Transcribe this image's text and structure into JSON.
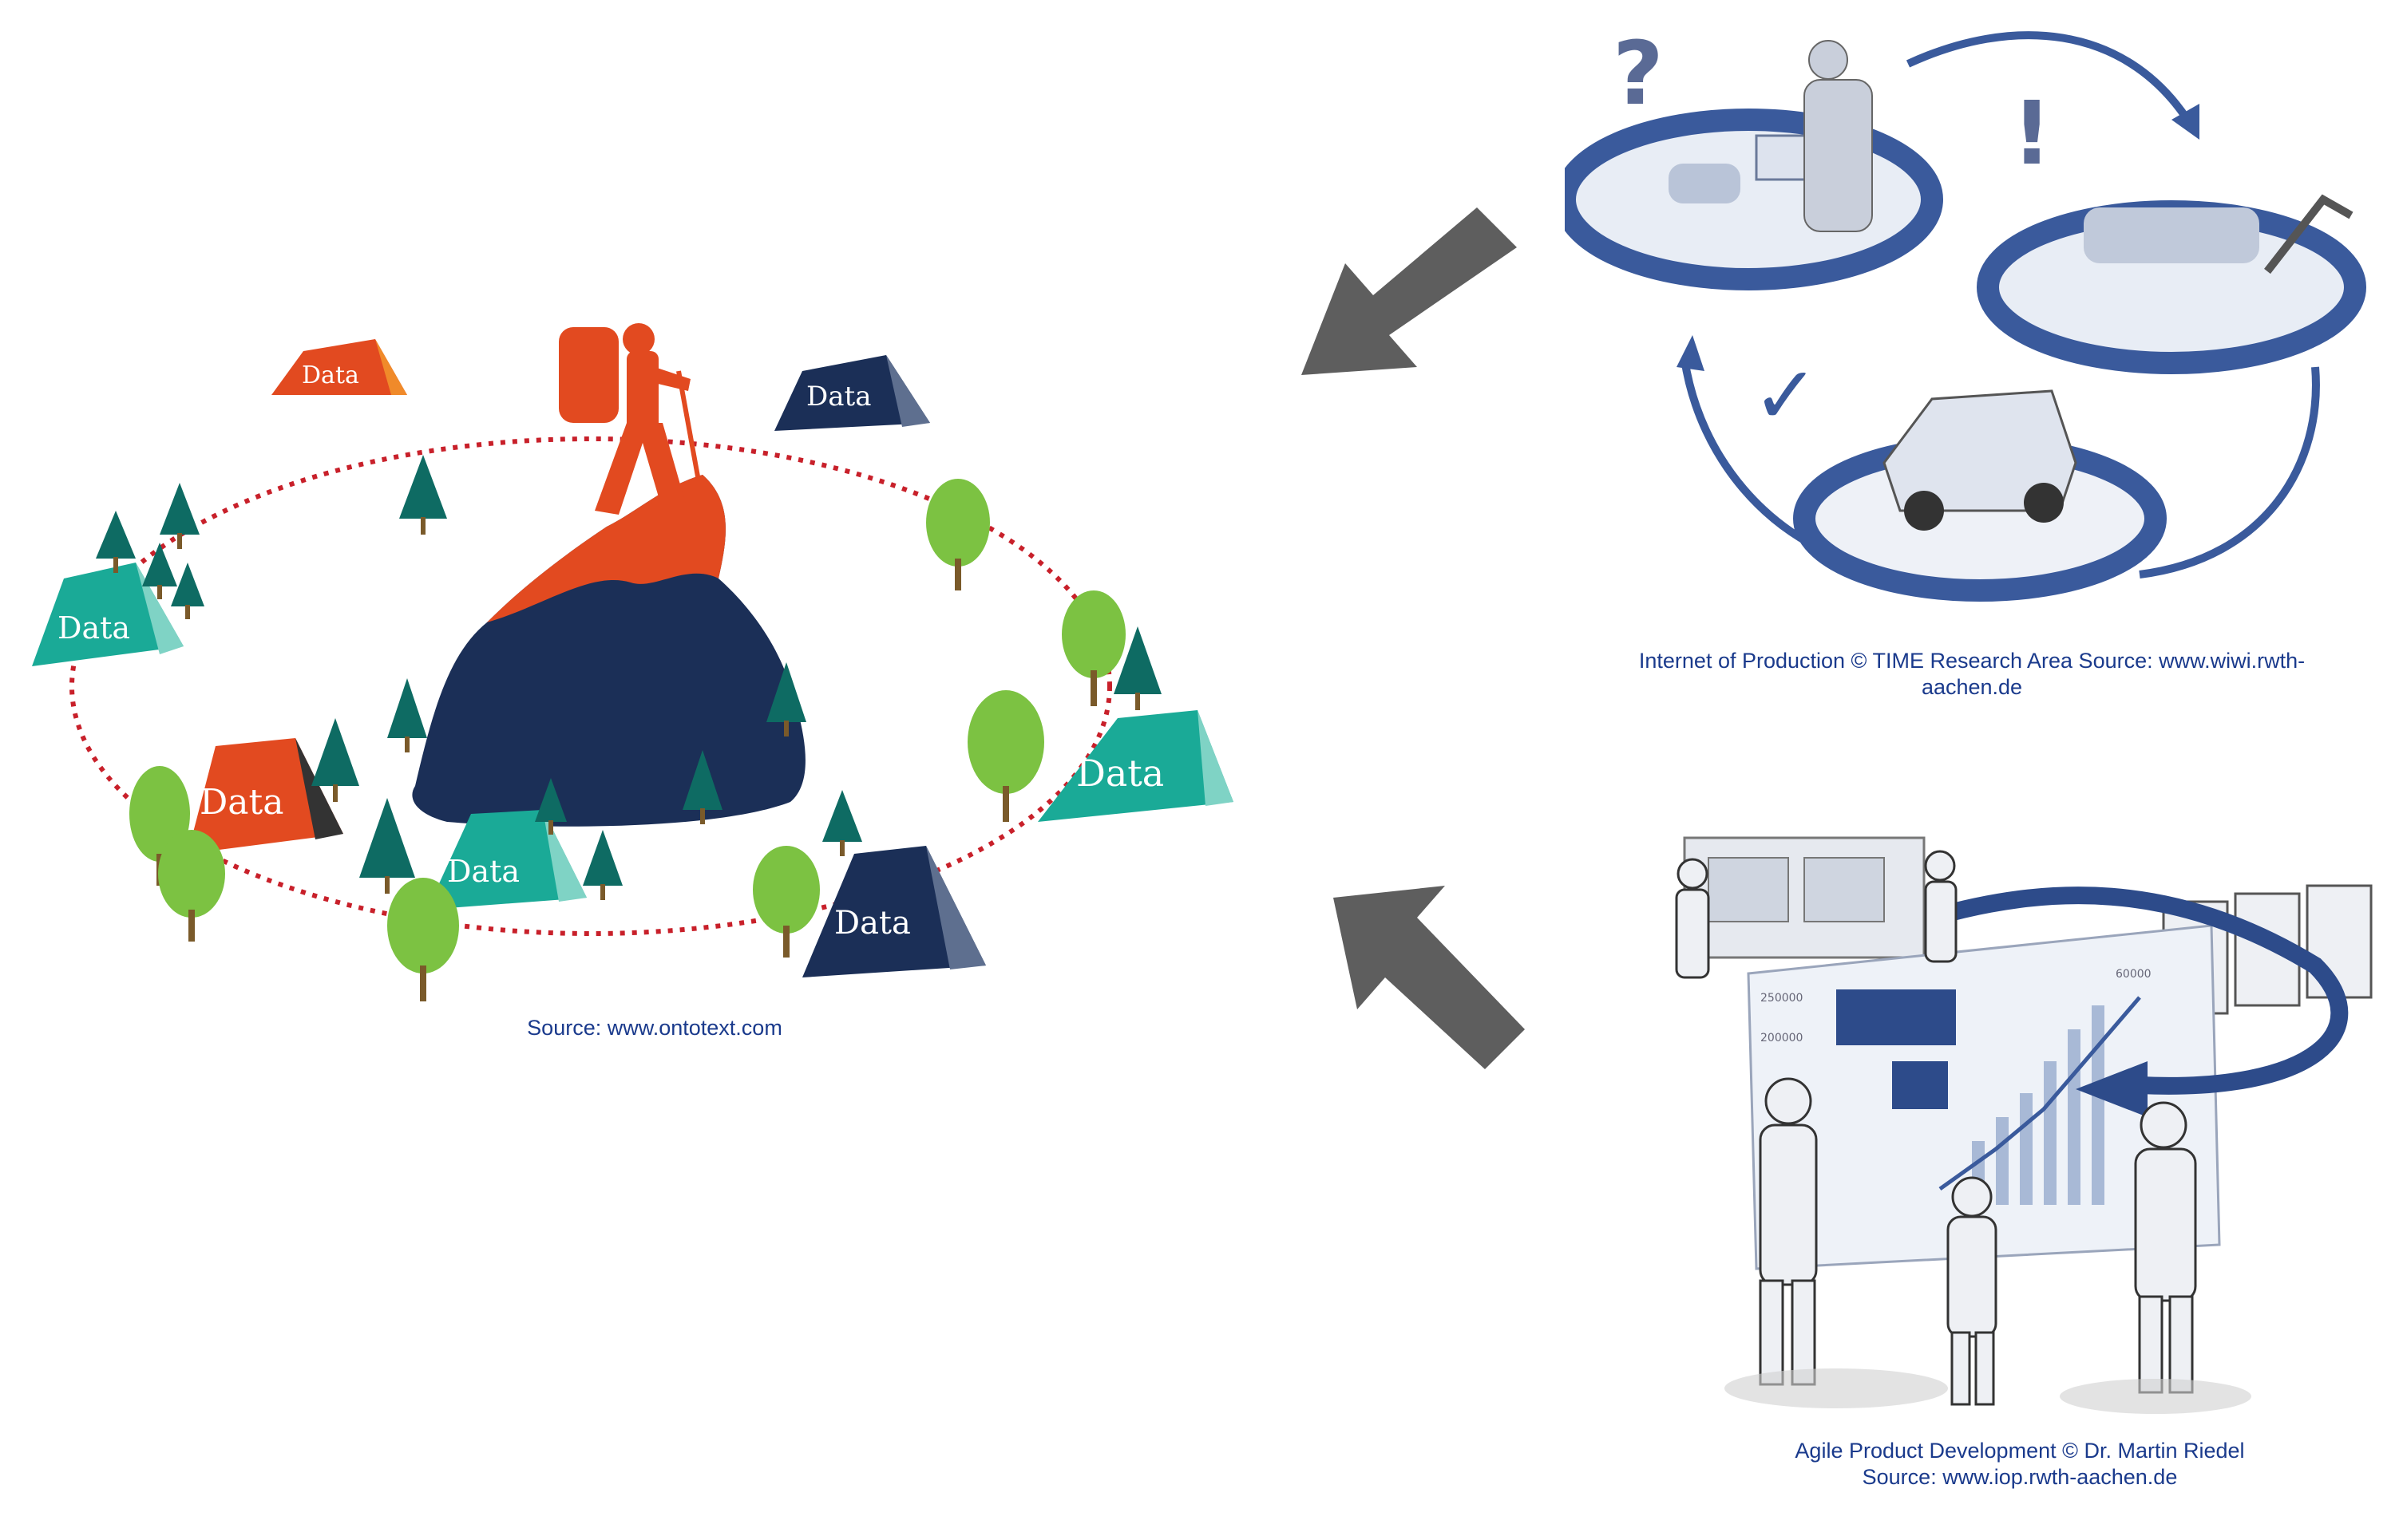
{
  "ontotext": {
    "source_caption": "Source: www.ontotext.com",
    "tent_label": "Data"
  },
  "production": {
    "caption_line1": "Internet of Production © TIME Research Area Source: www.wiwi.rwth-",
    "caption_line2": "aachen.de",
    "question_mark": "?",
    "exclamation_mark": "!",
    "check_mark": "✓"
  },
  "agile": {
    "caption_line1": "Agile Product Development © Dr. Martin Riedel",
    "caption_line2": "Source: www.iop.rwth-aachen.de",
    "chart_tick_1": "250000",
    "chart_tick_2": "200000",
    "chart_tick_3": "60000"
  },
  "colors": {
    "orange": "#e24a20",
    "navy": "#1b2f57",
    "teal": "#1aaa97",
    "tree_green": "#7cc242",
    "tree_dark": "#0e6b63",
    "dotted_red": "#c8202a",
    "arrow_gray": "#5e5e5e",
    "ring_blue": "#3a5a9c",
    "caption_blue": "#1a3a8c"
  }
}
